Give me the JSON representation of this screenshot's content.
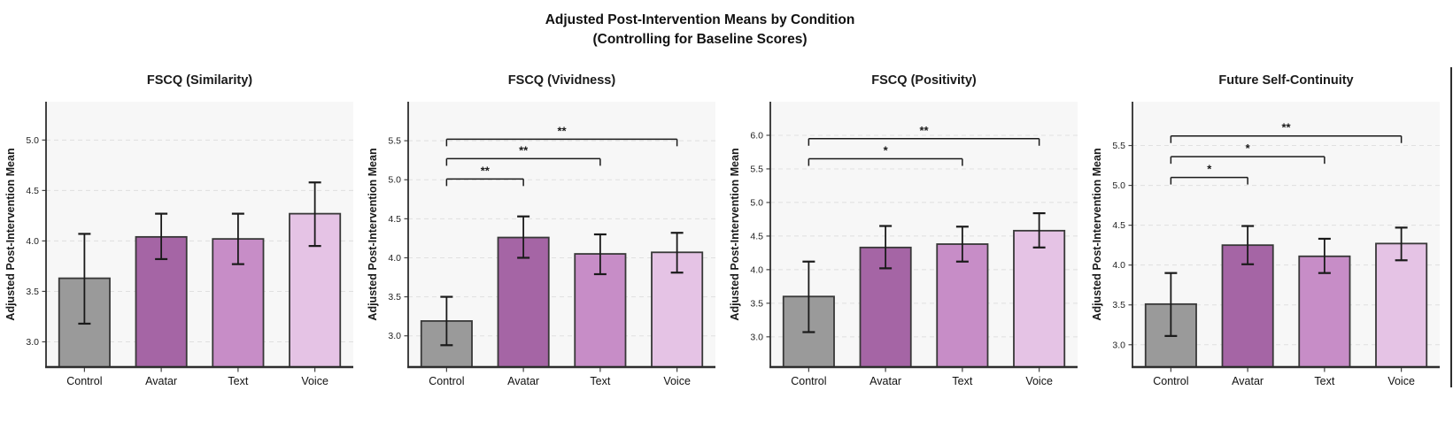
{
  "figure": {
    "title_line1": "Adjusted Post-Intervention Means by Condition",
    "title_line2": "(Controlling for Baseline Scores)"
  },
  "palette": {
    "plot_bg": "#f7f7f7",
    "grid": "#e0e0e0",
    "spine": "#2e2e2e",
    "bar_edge": "#383838",
    "error_bar": "#1a1a1a",
    "bar_colors": {
      "Control": "#9a9a9a",
      "Avatar": "#a565a5",
      "Text": "#c78dc7",
      "Voice": "#e5c3e5"
    }
  },
  "chart_data": [
    {
      "type": "bar",
      "title": "FSCQ (Similarity)",
      "ylabel": "Adjusted Post-Intervention Mean",
      "categories": [
        "Control",
        "Avatar",
        "Text",
        "Voice"
      ],
      "values": [
        3.63,
        4.04,
        4.02,
        4.27
      ],
      "ci_low": [
        3.18,
        3.82,
        3.77,
        3.95
      ],
      "ci_high": [
        4.07,
        4.27,
        4.27,
        4.58
      ],
      "yticks": [
        "3.0",
        "3.5",
        "4.0",
        "4.5",
        "5.0"
      ],
      "ylim": [
        2.75,
        5.38
      ],
      "grid": true,
      "significance": []
    },
    {
      "type": "bar",
      "title": "FSCQ (Vividness)",
      "ylabel": "Adjusted Post-Intervention Mean",
      "categories": [
        "Control",
        "Avatar",
        "Text",
        "Voice"
      ],
      "values": [
        3.19,
        4.26,
        4.05,
        4.07
      ],
      "ci_low": [
        2.88,
        4.0,
        3.79,
        3.81
      ],
      "ci_high": [
        3.5,
        4.53,
        4.3,
        4.32
      ],
      "yticks": [
        "3.0",
        "3.5",
        "4.0",
        "4.5",
        "5.0",
        "5.5"
      ],
      "ylim": [
        2.6,
        6.0
      ],
      "grid": true,
      "significance": [
        {
          "from": "Control",
          "to": "Avatar",
          "label": "**",
          "y": 5.01
        },
        {
          "from": "Control",
          "to": "Text",
          "label": "**",
          "y": 5.27
        },
        {
          "from": "Control",
          "to": "Voice",
          "label": "**",
          "y": 5.52
        }
      ]
    },
    {
      "type": "bar",
      "title": "FSCQ (Positivity)",
      "ylabel": "Adjusted Post-Intervention Mean",
      "categories": [
        "Control",
        "Avatar",
        "Text",
        "Voice"
      ],
      "values": [
        3.6,
        4.33,
        4.38,
        4.58
      ],
      "ci_low": [
        3.07,
        4.02,
        4.12,
        4.33
      ],
      "ci_high": [
        4.12,
        4.65,
        4.64,
        4.84
      ],
      "yticks": [
        "3.0",
        "3.5",
        "4.0",
        "4.5",
        "5.0",
        "5.5",
        "6.0"
      ],
      "ylim": [
        2.55,
        6.5
      ],
      "grid": true,
      "significance": [
        {
          "from": "Control",
          "to": "Text",
          "label": "*",
          "y": 5.65
        },
        {
          "from": "Control",
          "to": "Voice",
          "label": "**",
          "y": 5.95
        }
      ]
    },
    {
      "type": "bar",
      "title": "Future Self-Continuity",
      "ylabel": "Adjusted Post-Intervention Mean",
      "categories": [
        "Control",
        "Avatar",
        "Text",
        "Voice"
      ],
      "values": [
        3.51,
        4.25,
        4.11,
        4.27
      ],
      "ci_low": [
        3.11,
        4.01,
        3.9,
        4.06
      ],
      "ci_high": [
        3.9,
        4.49,
        4.33,
        4.47
      ],
      "yticks": [
        "3.0",
        "3.5",
        "4.0",
        "4.5",
        "5.0",
        "5.5"
      ],
      "ylim": [
        2.72,
        6.05
      ],
      "grid": true,
      "significance": [
        {
          "from": "Control",
          "to": "Avatar",
          "label": "*",
          "y": 5.1
        },
        {
          "from": "Control",
          "to": "Text",
          "label": "*",
          "y": 5.36
        },
        {
          "from": "Control",
          "to": "Voice",
          "label": "**",
          "y": 5.62
        }
      ]
    }
  ]
}
